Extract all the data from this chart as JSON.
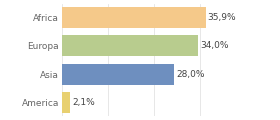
{
  "categories": [
    "Africa",
    "Europa",
    "Asia",
    "America"
  ],
  "values": [
    35.9,
    34.0,
    28.0,
    2.1
  ],
  "labels": [
    "35,9%",
    "34,0%",
    "28,0%",
    "2,1%"
  ],
  "bar_colors": [
    "#f5c98a",
    "#b8cc8e",
    "#6e8fbf",
    "#e8d070"
  ],
  "background_color": "#ffffff",
  "xlim": [
    0,
    100
  ],
  "label_fontsize": 6.5,
  "tick_fontsize": 6.5,
  "bar_height": 0.75,
  "grid_color": "#dddddd",
  "text_color": "#666666",
  "label_color": "#444444"
}
